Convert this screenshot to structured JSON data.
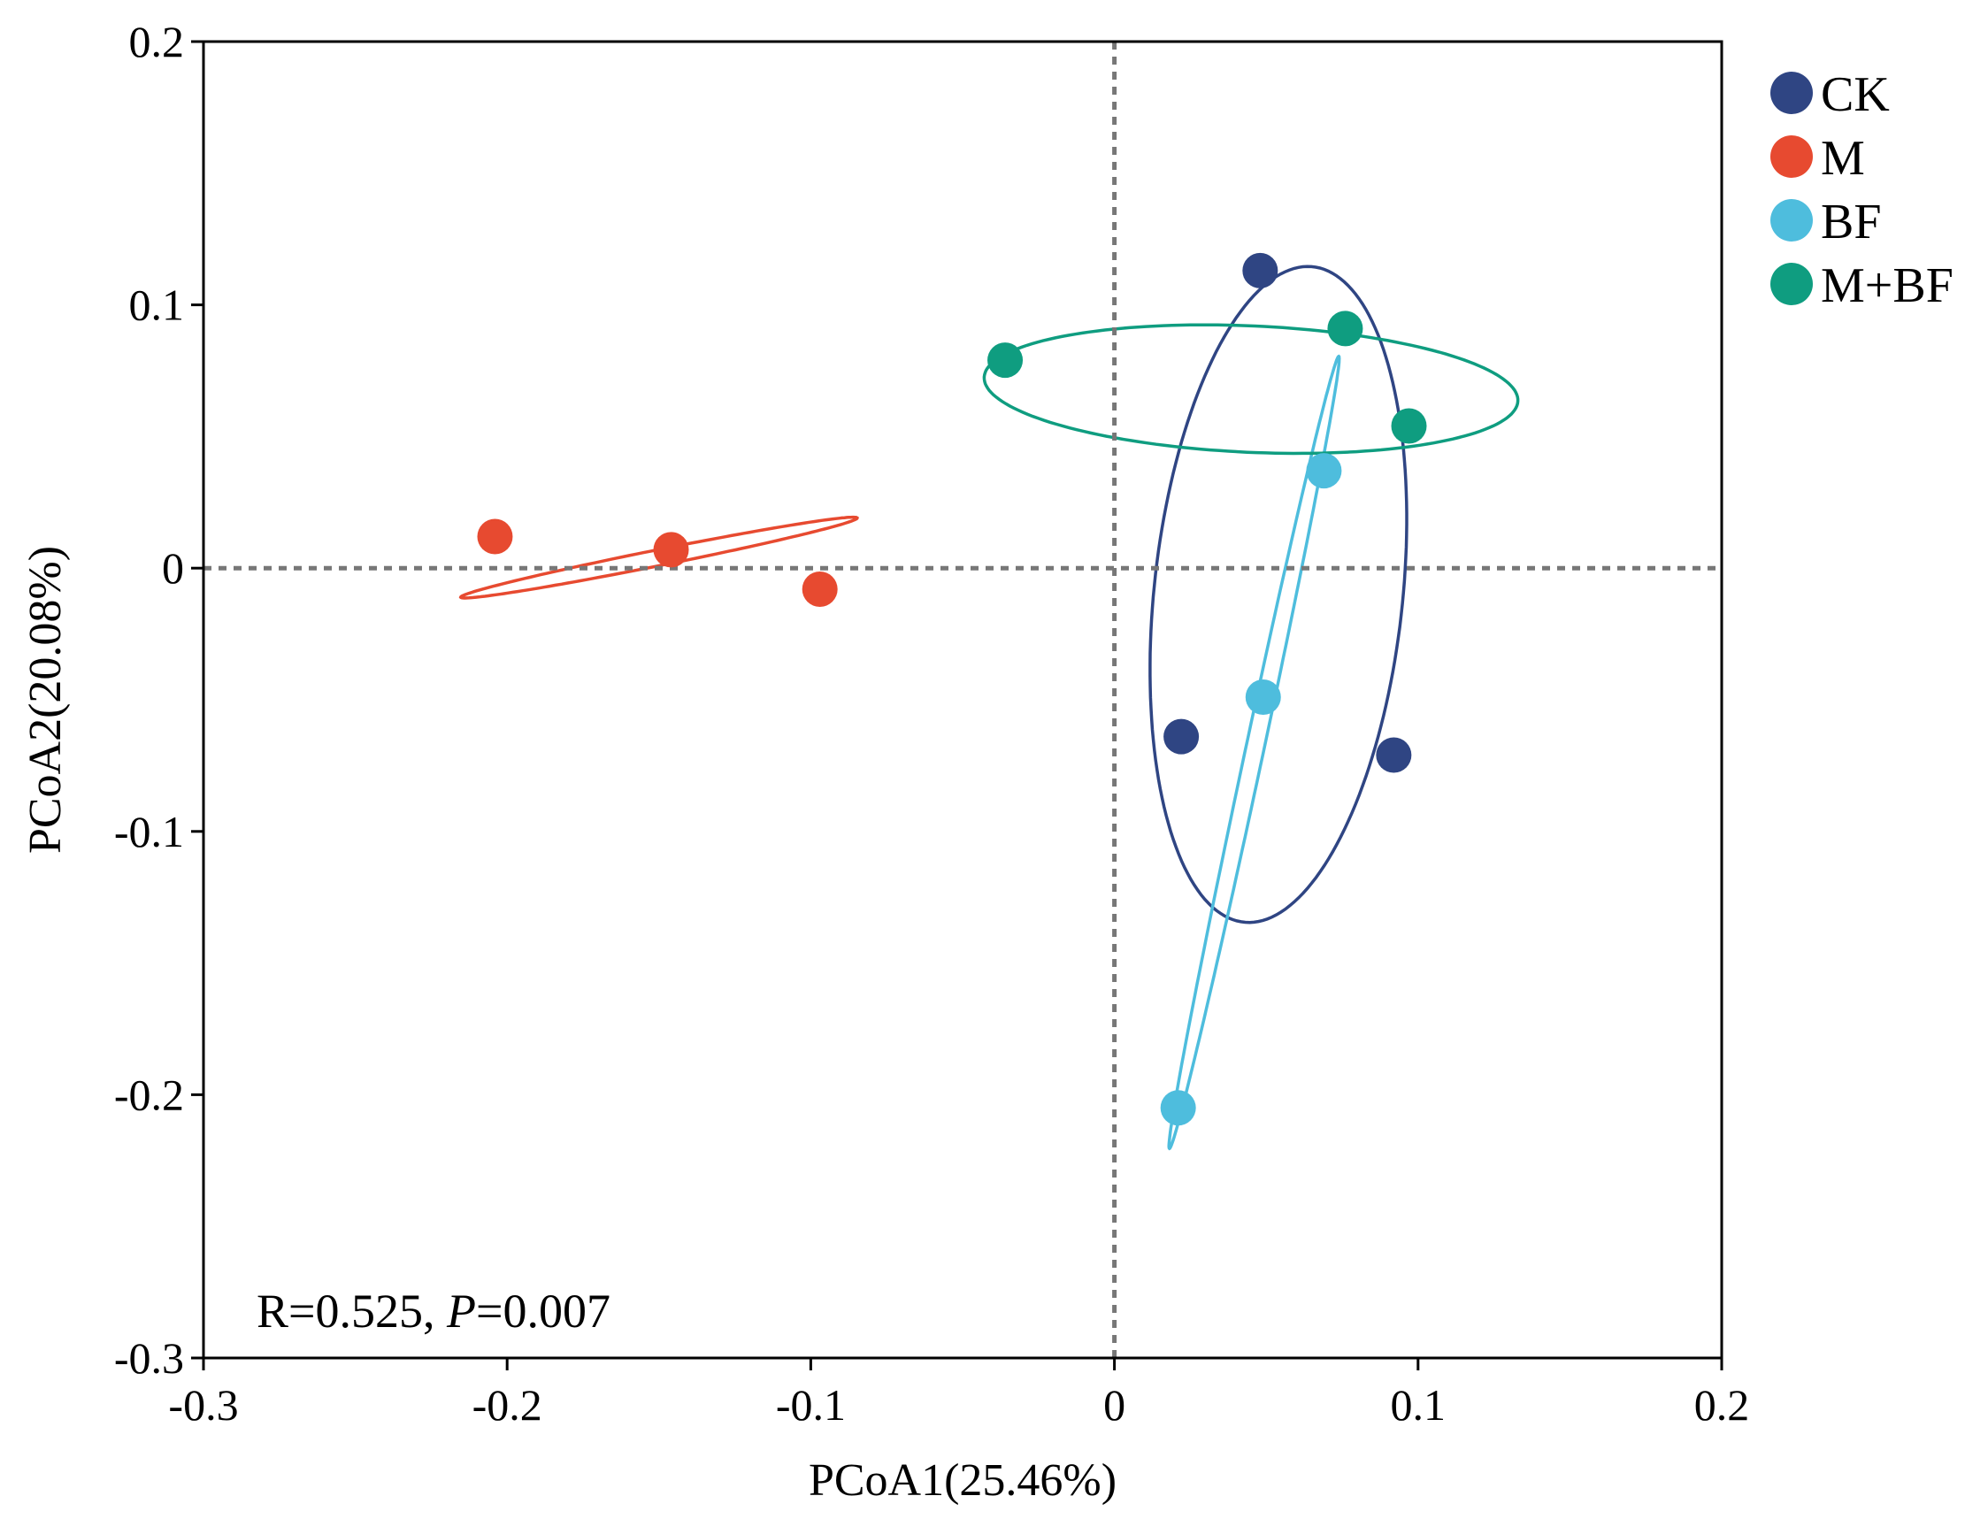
{
  "chart_data": {
    "type": "scatter",
    "title": "",
    "xlabel": "PCoA1(25.46%)",
    "ylabel": "PCoA2(20.08%)",
    "xlim": [
      -0.3,
      0.2
    ],
    "ylim": [
      -0.3,
      0.2
    ],
    "xticks": [
      -0.3,
      -0.2,
      -0.1,
      0,
      0.1,
      0.2
    ],
    "yticks": [
      -0.3,
      -0.2,
      -0.1,
      0,
      0.1,
      0.2
    ],
    "xtick_labels": [
      "-0.3",
      "-0.2",
      "-0.1",
      "0",
      "0.1",
      "0.2"
    ],
    "ytick_labels": [
      "-0.3",
      "-0.2",
      "-0.1",
      "0",
      "0.1",
      "0.2"
    ],
    "reference_lines": {
      "x": 0,
      "y": 0,
      "style": "dotted"
    },
    "legend_position": "top-right-outside",
    "annotation": {
      "prefix": "R=0.525, ",
      "italic": "P",
      "suffix": "=0.007"
    },
    "series": [
      {
        "name": "CK",
        "color": "#2f4583",
        "points": [
          [
            0.048,
            0.113
          ],
          [
            0.022,
            -0.064
          ],
          [
            0.092,
            -0.071
          ]
        ],
        "ellipse": {
          "cx": 0.054,
          "cy": -0.01,
          "rx": 0.041,
          "ry": 0.125,
          "angle_deg": -5
        }
      },
      {
        "name": "M",
        "color": "#e74a30",
        "points": [
          [
            -0.204,
            0.012
          ],
          [
            -0.146,
            0.007
          ],
          [
            -0.097,
            -0.008
          ]
        ],
        "ellipse": {
          "cx": -0.15,
          "cy": 0.004,
          "rx": 0.067,
          "ry": 0.003,
          "angle_deg": 13
        }
      },
      {
        "name": "BF",
        "color": "#4ebddd",
        "points": [
          [
            0.069,
            0.037
          ],
          [
            0.049,
            -0.049
          ],
          [
            0.021,
            -0.205
          ]
        ],
        "ellipse": {
          "cx": 0.046,
          "cy": -0.07,
          "rx": 0.153,
          "ry": 0.003,
          "angle_deg": 79.5
        }
      },
      {
        "name": "M+BF",
        "color": "#0f9d80",
        "points": [
          [
            -0.036,
            0.079
          ],
          [
            0.076,
            0.091
          ],
          [
            0.097,
            0.054
          ]
        ],
        "ellipse": {
          "cx": 0.045,
          "cy": 0.068,
          "rx": 0.088,
          "ry": 0.024,
          "angle_deg": -3
        }
      }
    ]
  }
}
